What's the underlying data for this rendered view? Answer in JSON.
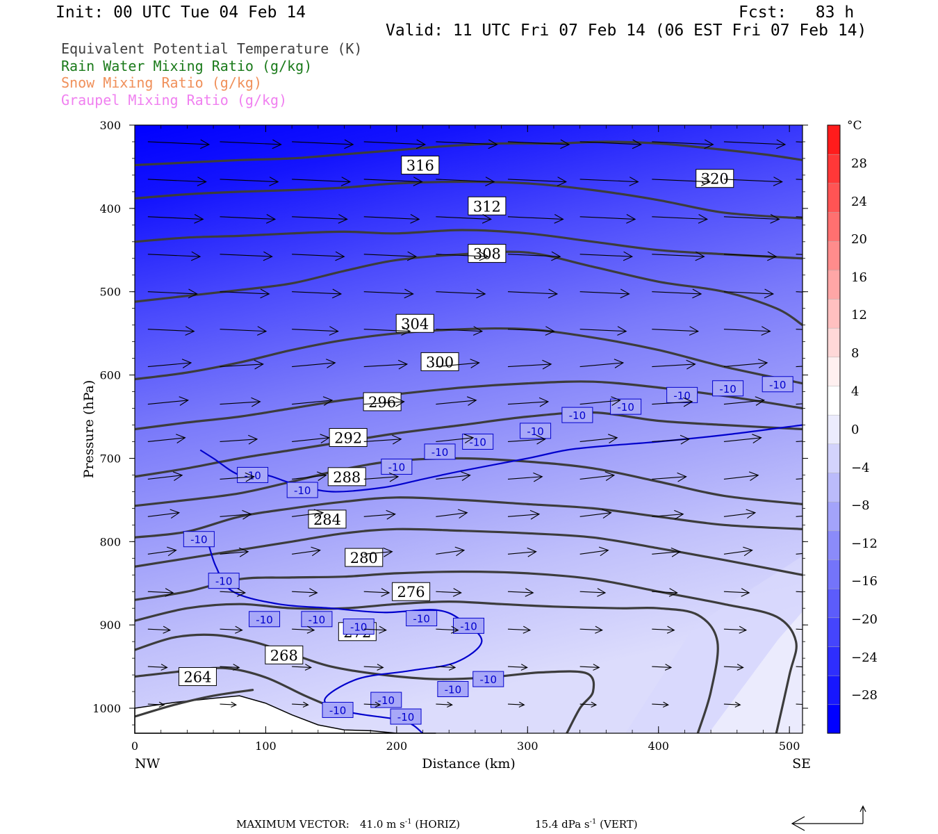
{
  "header": {
    "init": "Init: 00 UTC Tue 04 Feb 14",
    "fcst": "Fcst:   83 h",
    "valid": "Valid: 11 UTC Fri 07 Feb 14 (06 EST Fri 07 Feb 14)"
  },
  "variables": [
    {
      "label": "Equivalent Potential Temperature (K)",
      "color": "#404040"
    },
    {
      "label": "Rain Water Mixing Ratio (g/kg)",
      "color": "#1a7a1a"
    },
    {
      "label": "Snow Mixing Ratio (g/kg)",
      "color": "#f0905a"
    },
    {
      "label": "Graupel Mixing Ratio (g/kg)",
      "color": "#f080f0"
    }
  ],
  "chart_data": {
    "type": "cross-section",
    "title": "Equivalent Potential Temperature (K)",
    "xlabel": "Distance (km)",
    "ylabel": "Pressure (hPa)",
    "xlim": [
      0,
      510
    ],
    "ylim": [
      1030,
      300
    ],
    "x_ticks": [
      0,
      100,
      200,
      300,
      400,
      500
    ],
    "y_ticks": [
      300,
      400,
      500,
      600,
      700,
      800,
      900,
      1000
    ],
    "x_endpoint_labels": {
      "left": "NW",
      "right": "SE"
    },
    "colorbar": {
      "unit": "°C",
      "labels": [
        "28",
        "24",
        "20",
        "16",
        "12",
        "8",
        "4",
        "0",
        "-4",
        "-8",
        "-12",
        "-16",
        "-20",
        "-24",
        "-28"
      ],
      "min": -32,
      "max": 32,
      "step": 4,
      "colors": [
        "#0000ff",
        "#1717fe",
        "#2e2efd",
        "#4545fc",
        "#5c5cfb",
        "#7474fa",
        "#8b8bfa",
        "#a3a3fa",
        "#bbbbfb",
        "#d3d3fc",
        "#ececfd",
        "#ffffff",
        "#fff0f0",
        "#ffd8d8",
        "#ffc0c0",
        "#ffa6a6",
        "#ff8c8c",
        "#ff7070",
        "#ff5454",
        "#ff3838",
        "#ff1c1c"
      ]
    },
    "theta_e_contours": [
      {
        "label": "264",
        "points": [
          [
            0,
            1010
          ],
          [
            30,
            996
          ],
          [
            60,
            985
          ],
          [
            90,
            978
          ]
        ],
        "label_at": [
          48,
          962
        ]
      },
      {
        "label": "268",
        "points": [
          [
            0,
            962
          ],
          [
            40,
            955
          ],
          [
            70,
            952
          ],
          [
            100,
            963
          ],
          [
            130,
            985
          ],
          [
            160,
            1005
          ]
        ],
        "label_at": [
          114,
          936
        ]
      },
      {
        "label": "272",
        "points": [
          [
            0,
            930
          ],
          [
            30,
            915
          ],
          [
            60,
            912
          ],
          [
            90,
            920
          ],
          [
            120,
            935
          ],
          [
            150,
            950
          ],
          [
            190,
            960
          ],
          [
            230,
            965
          ],
          [
            270,
            963
          ],
          [
            310,
            957
          ],
          [
            345,
            958
          ],
          [
            350,
            980
          ],
          [
            340,
            1000
          ],
          [
            330,
            1030
          ]
        ],
        "label_at": [
          170,
          908
        ]
      },
      {
        "label": "276",
        "points": [
          [
            0,
            895
          ],
          [
            40,
            880
          ],
          [
            80,
            875
          ],
          [
            120,
            880
          ],
          [
            160,
            880
          ],
          [
            200,
            875
          ],
          [
            240,
            872
          ],
          [
            280,
            875
          ],
          [
            320,
            878
          ],
          [
            370,
            880
          ],
          [
            400,
            880
          ],
          [
            430,
            888
          ],
          [
            445,
            920
          ],
          [
            440,
            980
          ],
          [
            430,
            1030
          ]
        ],
        "label_at": [
          211,
          860
        ]
      },
      {
        "label": "280",
        "points": [
          [
            0,
            870
          ],
          [
            40,
            860
          ],
          [
            80,
            845
          ],
          [
            120,
            843
          ],
          [
            160,
            842
          ],
          [
            200,
            838
          ],
          [
            250,
            836
          ],
          [
            300,
            838
          ],
          [
            350,
            845
          ],
          [
            400,
            860
          ],
          [
            450,
            875
          ],
          [
            490,
            890
          ],
          [
            505,
            920
          ],
          [
            500,
            960
          ],
          [
            490,
            1030
          ]
        ],
        "label_at": [
          175,
          819
        ]
      },
      {
        "label": "284",
        "points": [
          [
            0,
            830
          ],
          [
            40,
            820
          ],
          [
            80,
            810
          ],
          [
            120,
            800
          ],
          [
            160,
            790
          ],
          [
            200,
            785
          ],
          [
            250,
            787
          ],
          [
            300,
            790
          ],
          [
            350,
            795
          ],
          [
            400,
            808
          ],
          [
            450,
            822
          ],
          [
            510,
            840
          ]
        ],
        "label_at": [
          147,
          773
        ]
      },
      {
        "label": "288",
        "points": [
          [
            0,
            795
          ],
          [
            40,
            788
          ],
          [
            80,
            770
          ],
          [
            120,
            760
          ],
          [
            160,
            752
          ],
          [
            200,
            747
          ],
          [
            250,
            750
          ],
          [
            300,
            755
          ],
          [
            350,
            760
          ],
          [
            400,
            770
          ],
          [
            450,
            780
          ],
          [
            510,
            785
          ]
        ],
        "label_at": [
          162,
          722
        ]
      },
      {
        "label": "292",
        "points": [
          [
            0,
            757
          ],
          [
            40,
            750
          ],
          [
            80,
            742
          ],
          [
            120,
            728
          ],
          [
            160,
            713
          ],
          [
            200,
            703
          ],
          [
            250,
            700
          ],
          [
            300,
            704
          ],
          [
            350,
            712
          ],
          [
            400,
            728
          ],
          [
            450,
            745
          ],
          [
            510,
            755
          ]
        ],
        "label_at": [
          163,
          675
        ]
      },
      {
        "label": "296",
        "points": [
          [
            0,
            722
          ],
          [
            40,
            712
          ],
          [
            80,
            700
          ],
          [
            120,
            690
          ],
          [
            160,
            680
          ],
          [
            200,
            670
          ],
          [
            250,
            660
          ],
          [
            300,
            650
          ],
          [
            350,
            645
          ],
          [
            400,
            655
          ],
          [
            450,
            660
          ],
          [
            510,
            665
          ]
        ],
        "label_at": [
          189,
          632
        ]
      },
      {
        "label": "300",
        "points": [
          [
            0,
            665
          ],
          [
            40,
            657
          ],
          [
            80,
            650
          ],
          [
            120,
            640
          ],
          [
            160,
            630
          ],
          [
            200,
            623
          ],
          [
            250,
            615
          ],
          [
            300,
            610
          ],
          [
            350,
            608
          ],
          [
            400,
            615
          ],
          [
            450,
            625
          ],
          [
            510,
            640
          ]
        ],
        "label_at": [
          233,
          584
        ]
      },
      {
        "label": "304",
        "points": [
          [
            0,
            605
          ],
          [
            40,
            597
          ],
          [
            80,
            585
          ],
          [
            120,
            570
          ],
          [
            160,
            558
          ],
          [
            200,
            550
          ],
          [
            250,
            545
          ],
          [
            300,
            545
          ],
          [
            350,
            555
          ],
          [
            400,
            570
          ],
          [
            450,
            590
          ],
          [
            510,
            610
          ]
        ],
        "label_at": [
          214,
          538
        ]
      },
      {
        "label": "308",
        "points": [
          [
            0,
            512
          ],
          [
            40,
            505
          ],
          [
            80,
            498
          ],
          [
            120,
            490
          ],
          [
            160,
            475
          ],
          [
            200,
            462
          ],
          [
            250,
            455
          ],
          [
            300,
            453
          ],
          [
            350,
            470
          ],
          [
            400,
            488
          ],
          [
            450,
            500
          ],
          [
            490,
            520
          ],
          [
            510,
            540
          ]
        ],
        "label_at": [
          269,
          454
        ]
      },
      {
        "label": "312",
        "points": [
          [
            0,
            440
          ],
          [
            40,
            435
          ],
          [
            80,
            433
          ],
          [
            120,
            430
          ],
          [
            160,
            428
          ],
          [
            200,
            430
          ],
          [
            250,
            426
          ],
          [
            300,
            430
          ],
          [
            350,
            440
          ],
          [
            400,
            450
          ],
          [
            450,
            455
          ],
          [
            510,
            460
          ]
        ],
        "label_at": [
          269,
          397
        ]
      },
      {
        "label": "316",
        "points": [
          [
            0,
            388
          ],
          [
            40,
            383
          ],
          [
            80,
            380
          ],
          [
            120,
            378
          ],
          [
            160,
            375
          ],
          [
            200,
            370
          ],
          [
            250,
            368
          ],
          [
            300,
            370
          ],
          [
            350,
            378
          ],
          [
            400,
            390
          ],
          [
            450,
            405
          ],
          [
            510,
            412
          ]
        ],
        "label_at": [
          218,
          348
        ]
      },
      {
        "label": "320",
        "points": [
          [
            0,
            348
          ],
          [
            40,
            345
          ],
          [
            80,
            342
          ],
          [
            120,
            340
          ],
          [
            160,
            335
          ],
          [
            200,
            330
          ],
          [
            240,
            325
          ],
          [
            280,
            322
          ],
          [
            320,
            322
          ],
          [
            360,
            320
          ],
          [
            400,
            322
          ],
          [
            440,
            328
          ],
          [
            480,
            335
          ],
          [
            510,
            342
          ]
        ],
        "label_at": [
          443,
          364
        ]
      }
    ],
    "temperature_isotherm": {
      "label": "-10",
      "points": [
        [
          50,
          690
        ],
        [
          60,
          700
        ],
        [
          80,
          720
        ],
        [
          100,
          720
        ],
        [
          120,
          730
        ],
        [
          150,
          740
        ],
        [
          190,
          735
        ],
        [
          220,
          725
        ],
        [
          250,
          715
        ],
        [
          300,
          700
        ],
        [
          330,
          690
        ],
        [
          360,
          685
        ],
        [
          400,
          680
        ],
        [
          450,
          672
        ],
        [
          510,
          660
        ]
      ],
      "label_positions": [
        [
          90,
          720
        ],
        [
          128,
          738
        ],
        [
          200,
          710
        ],
        [
          233,
          692
        ],
        [
          262,
          680
        ],
        [
          306,
          667
        ],
        [
          338,
          648
        ],
        [
          375,
          638
        ],
        [
          418,
          624
        ],
        [
          453,
          616
        ],
        [
          491,
          611
        ],
        [
          49,
          797
        ],
        [
          68,
          847
        ],
        [
          99,
          893
        ],
        [
          139,
          893
        ],
        [
          171,
          902
        ],
        [
          219,
          892
        ],
        [
          255,
          901
        ],
        [
          270,
          965
        ],
        [
          243,
          977
        ],
        [
          192,
          990
        ],
        [
          155,
          1002
        ],
        [
          207,
          1010
        ]
      ]
    },
    "wind_vectors": {
      "max_horiz": "41.0",
      "max_vert": "15.4",
      "note": "arrows depict horizontal and vertical motion"
    }
  },
  "footer": {
    "max_vector_label": "MAXIMUM VECTOR:",
    "horiz_value": "41.0 m s",
    "horiz_exp": "-1",
    "horiz_tag": "(HORIZ)",
    "vert_value": "15.4 dPa s",
    "vert_exp": "-1",
    "vert_tag": "(VERT)"
  }
}
